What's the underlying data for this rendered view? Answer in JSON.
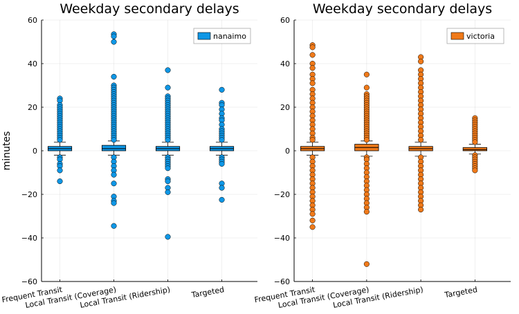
{
  "chart_data": [
    {
      "type": "box",
      "title": "Weekday secondary delays",
      "xlabel": "",
      "ylabel": "minutes",
      "ylim": [
        -60,
        60
      ],
      "yticks": [
        -60,
        -40,
        -20,
        0,
        20,
        40,
        60
      ],
      "grid": true,
      "legend_position": "top-right",
      "categories": [
        "Frequent Transit",
        "Local Transit (Coverage)",
        "Local Transit (Ridership)",
        "Targeted"
      ],
      "series": [
        {
          "name": "nanaimo",
          "color": "#0f97e6",
          "boxes": [
            {
              "q1": 0,
              "median": 1,
              "q3": 2,
              "whisker_low": -2,
              "whisker_high": 4,
              "outliers": [
                24,
                23,
                21,
                20,
                19,
                18,
                17,
                16,
                15,
                14,
                13,
                12,
                11,
                10,
                9,
                8,
                7,
                6,
                5,
                -3,
                -4,
                -6,
                -7,
                -9,
                -14
              ]
            },
            {
              "q1": 0,
              "median": 1,
              "q3": 2.5,
              "whisker_low": -2,
              "whisker_high": 4.5,
              "outliers": [
                53.5,
                52.5,
                50,
                34,
                30,
                29,
                28,
                27,
                26,
                25,
                24,
                23,
                22,
                21,
                20,
                19,
                18,
                17,
                16,
                15,
                14,
                13,
                12,
                11,
                10,
                9,
                8,
                7,
                6,
                5,
                -3,
                -5,
                -7,
                -9,
                -11,
                -15,
                -21,
                -23,
                -24,
                -34.5
              ]
            },
            {
              "q1": 0,
              "median": 1,
              "q3": 2,
              "whisker_low": -2,
              "whisker_high": 4,
              "outliers": [
                37,
                29,
                25,
                24,
                23,
                22,
                21,
                20,
                19,
                18,
                17,
                16,
                15,
                14,
                13,
                12,
                11,
                10,
                9,
                8,
                7,
                6,
                5,
                -3,
                -4,
                -5,
                -6,
                -7,
                -8,
                -13,
                -14,
                -17,
                -19,
                -39.5
              ]
            },
            {
              "q1": 0,
              "median": 1,
              "q3": 2,
              "whisker_low": -2,
              "whisker_high": 4,
              "outliers": [
                28,
                22,
                21,
                19,
                17,
                15,
                14,
                12,
                10,
                9,
                8,
                7,
                6,
                5,
                -3,
                -4,
                -5,
                -6,
                -15,
                -17,
                -22.5
              ]
            }
          ]
        },
        {
          "name": "victoria",
          "color": "#f07a1a",
          "boxes": [
            {
              "q1": 0,
              "median": 1,
              "q3": 2,
              "whisker_low": -2,
              "whisker_high": 4,
              "outliers": [
                48.5,
                47.5,
                44,
                40,
                38,
                35,
                33,
                31,
                28,
                26,
                24,
                22,
                20,
                18,
                16,
                14,
                12,
                10,
                8,
                6,
                5,
                -3,
                -5,
                -7,
                -9,
                -11,
                -13,
                -15,
                -17,
                -19,
                -21,
                -23,
                -25,
                -27,
                -29,
                -32,
                -35
              ]
            },
            {
              "q1": 0,
              "median": 1.5,
              "q3": 3,
              "whisker_low": -2.5,
              "whisker_high": 4.5,
              "outliers": [
                35,
                29,
                26,
                25,
                24,
                23,
                22,
                21,
                20,
                19,
                18,
                17,
                16,
                15,
                14,
                13,
                12,
                11,
                10,
                9,
                8,
                7,
                6,
                5,
                -3,
                -4,
                -6,
                -8,
                -10,
                -12,
                -14,
                -16,
                -18,
                -20,
                -22,
                -24,
                -26,
                -28,
                -52
              ]
            },
            {
              "q1": 0,
              "median": 1,
              "q3": 2,
              "whisker_low": -2.5,
              "whisker_high": 4,
              "outliers": [
                43,
                41,
                37,
                35,
                33,
                31,
                29,
                27,
                25,
                23,
                21,
                19,
                17,
                15,
                13,
                11,
                9,
                7,
                5,
                -3,
                -5,
                -7,
                -9,
                -11,
                -13,
                -15,
                -17,
                -19,
                -21,
                -23,
                -25,
                -27
              ]
            },
            {
              "q1": 0,
              "median": 0.5,
              "q3": 1.5,
              "whisker_low": -1.5,
              "whisker_high": 3,
              "outliers": [
                15,
                14,
                13,
                12,
                11,
                10,
                9,
                8,
                7,
                6,
                5,
                4,
                -2,
                -3,
                -4,
                -5,
                -6,
                -7,
                -8,
                -9
              ]
            }
          ]
        }
      ]
    }
  ]
}
